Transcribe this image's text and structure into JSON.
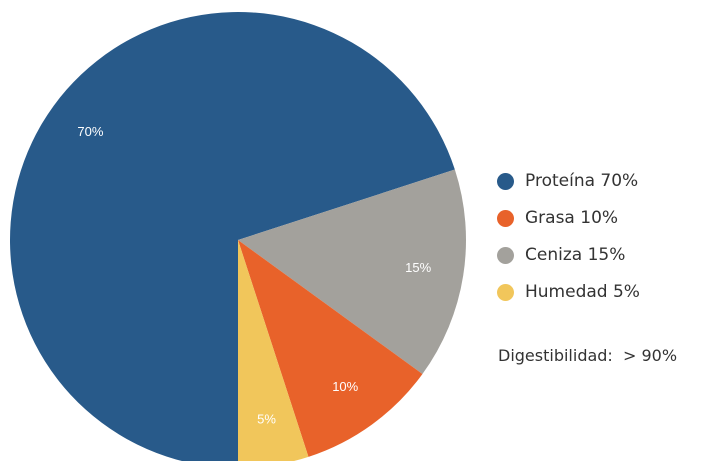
{
  "chart_data": {
    "type": "pie",
    "slices": [
      {
        "name": "Proteína",
        "value": 70,
        "label": "70%",
        "color": "#285a8a"
      },
      {
        "name": "Ceniza",
        "value": 15,
        "label": "15%",
        "color": "#a3a19c"
      },
      {
        "name": "Grasa",
        "value": 10,
        "label": "10%",
        "color": "#e8622a"
      },
      {
        "name": "Humedad",
        "value": 5,
        "label": "5%",
        "color": "#f1c65b"
      }
    ],
    "legend": {
      "placement": "right",
      "items": [
        {
          "text": "Proteína 70%",
          "color": "#285a8a"
        },
        {
          "text": "Grasa 10%",
          "color": "#e8622a"
        },
        {
          "text": "Ceniza 15%",
          "color": "#a3a19c"
        },
        {
          "text": "Humedad 5%",
          "color": "#f1c65b"
        }
      ]
    },
    "note": "Digestibilidad:  > 90%"
  }
}
